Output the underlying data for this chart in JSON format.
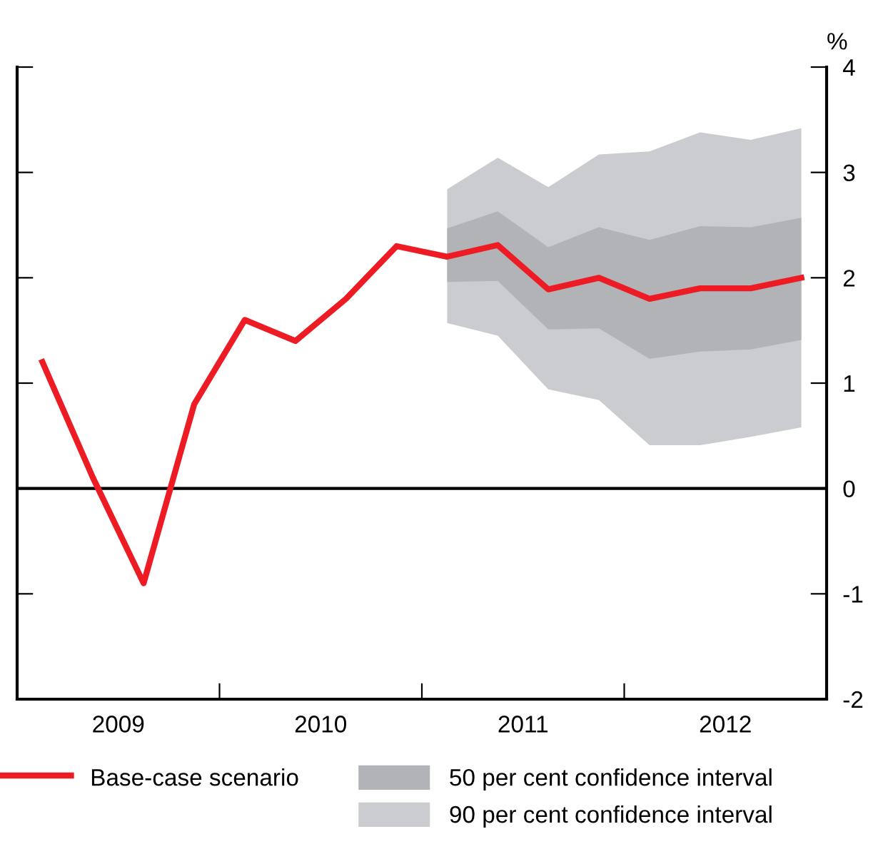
{
  "chart_data": {
    "type": "area",
    "ylabel": "%",
    "xlim": [
      2009,
      2013
    ],
    "xticks": [
      {
        "value": 2009.5,
        "label": "2009"
      },
      {
        "value": 2010,
        "label": null
      },
      {
        "value": 2010.5,
        "label": "2010"
      },
      {
        "value": 2011,
        "label": null
      },
      {
        "value": 2011.5,
        "label": "2011"
      },
      {
        "value": 2012,
        "label": null
      },
      {
        "value": 2012.5,
        "label": "2012"
      }
    ],
    "ylim": [
      -2,
      4
    ],
    "yticks": [
      -2,
      -1,
      0,
      1,
      2,
      3,
      4
    ],
    "series": [
      {
        "name": "90 per cent confidence interval",
        "color": "#cbcccf",
        "x": [
          2011.125,
          2011.375,
          2011.625,
          2011.875,
          2012.125,
          2012.375,
          2012.625,
          2012.875
        ],
        "values": [
          null,
          null,
          null,
          null,
          null,
          null,
          null,
          null
        ],
        "lower": [
          1.57,
          1.45,
          0.94,
          0.84,
          0.41,
          0.41,
          0.49,
          0.58
        ],
        "upper": [
          2.84,
          3.14,
          2.86,
          3.17,
          3.2,
          3.38,
          3.31,
          3.42
        ]
      },
      {
        "name": "50 per cent confidence interval",
        "color": "#b1b3b6",
        "x": [
          2011.125,
          2011.375,
          2011.625,
          2011.875,
          2012.125,
          2012.375,
          2012.625,
          2012.875
        ],
        "values": [
          null,
          null,
          null,
          null,
          null,
          null,
          null,
          null
        ],
        "lower": [
          1.96,
          1.97,
          1.51,
          1.52,
          1.23,
          1.3,
          1.32,
          1.41
        ],
        "upper": [
          2.47,
          2.63,
          2.29,
          2.48,
          2.36,
          2.49,
          2.48,
          2.57
        ]
      },
      {
        "type": "line",
        "name": "Base-case scenario",
        "color": "#ed1c24",
        "x": [
          2009.125,
          2009.375,
          2009.625,
          2009.875,
          2010.125,
          2010.375,
          2010.625,
          2010.875,
          2011.125,
          2011.375,
          2011.625,
          2011.875,
          2012.125,
          2012.375,
          2012.625,
          2012.875
        ],
        "values": [
          1.2,
          0.1,
          -0.9,
          0.8,
          1.6,
          1.4,
          1.8,
          2.3,
          2.2,
          2.31,
          1.89,
          2.0,
          1.8,
          1.9,
          1.9,
          2.0
        ]
      }
    ],
    "ref_lines": [
      {
        "axis": "y",
        "value": 0,
        "color": "#000000"
      }
    ],
    "grid": false,
    "legend": "bottom"
  }
}
